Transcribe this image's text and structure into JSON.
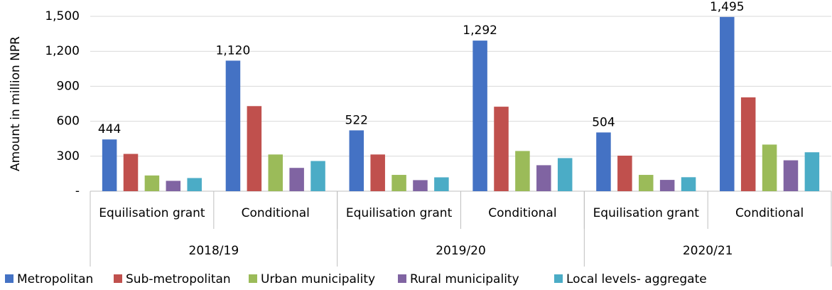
{
  "chart_data": {
    "type": "bar",
    "y_label": "Amount in million NPR",
    "categories": [
      "Equilisation grant",
      "Conditional",
      "Equilisation grant",
      "Conditional",
      "Equilisation grant",
      "Conditional"
    ],
    "groups": [
      "2018/19",
      "2019/20",
      "2020/21"
    ],
    "series": [
      {
        "name": "Metropolitan",
        "color": "#4472c4",
        "values": [
          444,
          1120,
          522,
          1292,
          504,
          1495
        ],
        "value_labels": [
          "444",
          "1,120",
          "522",
          "1,292",
          "504",
          "1,495"
        ]
      },
      {
        "name": "Sub-metropolitan",
        "color": "#c0504d",
        "values": [
          320,
          730,
          315,
          725,
          305,
          805
        ]
      },
      {
        "name": "Urban municipality",
        "color": "#9bbb59",
        "values": [
          135,
          315,
          140,
          345,
          140,
          400
        ]
      },
      {
        "name": "Rural municipality",
        "color": "#8064a2",
        "values": [
          89,
          200,
          95,
          223,
          97,
          265
        ]
      },
      {
        "name": "Local levels- aggregate",
        "color": "#4bacc6",
        "values": [
          113,
          259,
          119,
          284,
          120,
          334
        ]
      }
    ],
    "ylim": [
      0,
      1500
    ],
    "yticks": [
      {
        "value": 0,
        "label": "-"
      },
      300,
      600,
      900,
      {
        "value": 1200,
        "label": "1,200"
      },
      {
        "value": 1500,
        "label": "1,500"
      }
    ],
    "grid": true,
    "legend": "bottom"
  }
}
